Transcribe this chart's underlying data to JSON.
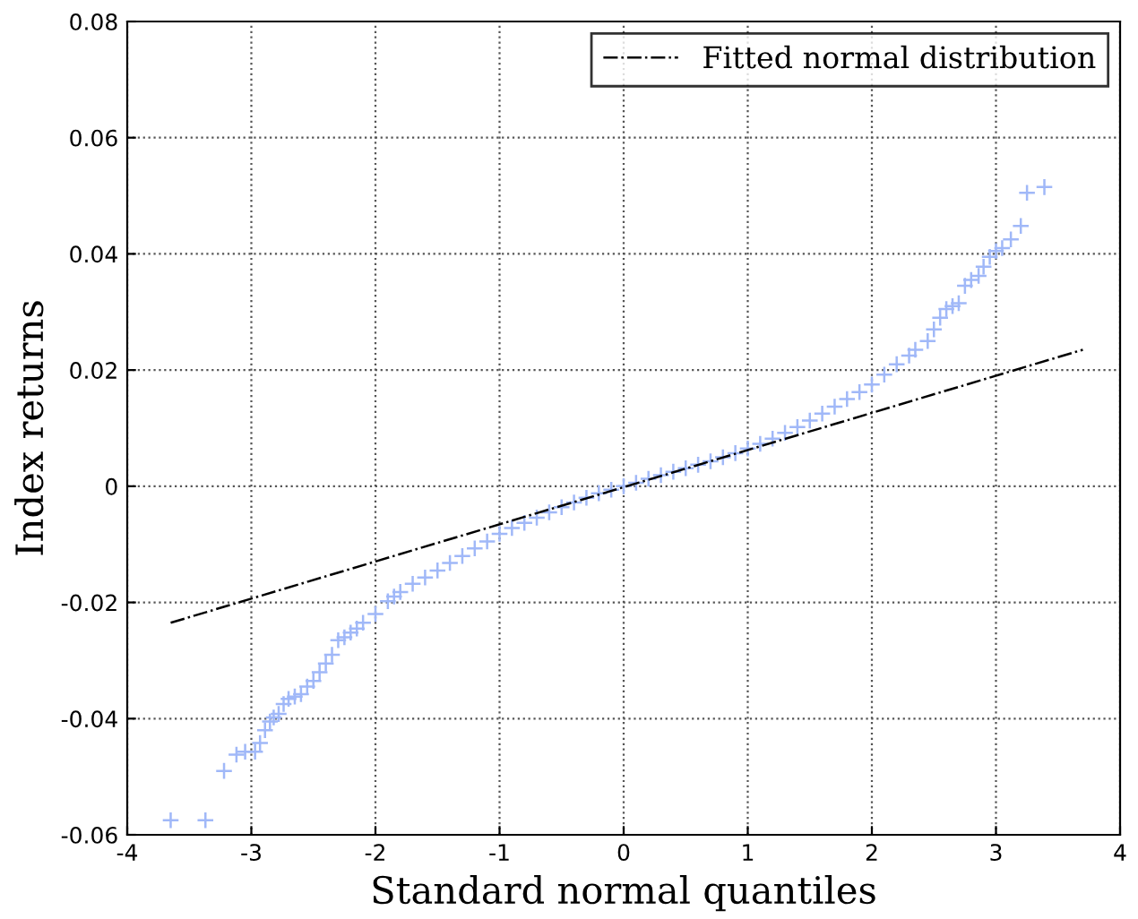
{
  "chart_data": {
    "type": "scatter",
    "xlabel": "Standard normal quantiles",
    "ylabel": "Index returns",
    "xlim": [
      -4,
      4
    ],
    "xticks": [
      -4,
      -3,
      -2,
      -1,
      0,
      1,
      2,
      3,
      4
    ],
    "ylim": [
      -0.06,
      0.08
    ],
    "yticks": [
      -0.06,
      -0.04,
      -0.02,
      0,
      0.02,
      0.04,
      0.06,
      0.08
    ],
    "grid": true,
    "legend": "top right",
    "series": [
      {
        "color": "#a0b8f8",
        "marker": "cross",
        "x": [
          -3.65,
          -3.37,
          -3.22,
          -3.12,
          -3.05,
          -2.97,
          -2.93,
          -2.89,
          -2.85,
          -2.82,
          -2.78,
          -2.74,
          -2.7,
          -2.65,
          -2.6,
          -2.55,
          -2.5,
          -2.45,
          -2.4,
          -2.35,
          -2.3,
          -2.25,
          -2.2,
          -2.15,
          -2.1,
          -2.0,
          -1.9,
          -1.85,
          -1.8,
          -1.7,
          -1.6,
          -1.5,
          -1.4,
          -1.3,
          -1.2,
          -1.1,
          -1.0,
          -0.9,
          -0.8,
          -0.7,
          -0.6,
          -0.5,
          -0.4,
          -0.3,
          -0.2,
          -0.1,
          0,
          0.1,
          0.2,
          0.3,
          0.4,
          0.5,
          0.6,
          0.7,
          0.8,
          0.9,
          1.0,
          1.1,
          1.2,
          1.3,
          1.4,
          1.5,
          1.6,
          1.7,
          1.8,
          1.9,
          2.0,
          2.1,
          2.2,
          2.3,
          2.35,
          2.45,
          2.5,
          2.55,
          2.6,
          2.65,
          2.7,
          2.75,
          2.8,
          2.86,
          2.9,
          2.95,
          3.0,
          3.05,
          3.12,
          3.2,
          3.25,
          3.39
        ],
        "values": [
          -0.0575,
          -0.0575,
          -0.049,
          -0.0462,
          -0.0457,
          -0.0457,
          -0.0442,
          -0.042,
          -0.0405,
          -0.0398,
          -0.0392,
          -0.0375,
          -0.0366,
          -0.0362,
          -0.0358,
          -0.0345,
          -0.0335,
          -0.032,
          -0.0305,
          -0.029,
          -0.0265,
          -0.026,
          -0.0252,
          -0.0245,
          -0.0235,
          -0.022,
          -0.0198,
          -0.019,
          -0.0182,
          -0.0168,
          -0.0157,
          -0.0145,
          -0.0132,
          -0.012,
          -0.0107,
          -0.0095,
          -0.0082,
          -0.0072,
          -0.0063,
          -0.0054,
          -0.0045,
          -0.0036,
          -0.0028,
          -0.002,
          -0.0012,
          -0.0006,
          0,
          0.0006,
          0.0013,
          0.0019,
          0.0025,
          0.0031,
          0.0037,
          0.0043,
          0.005,
          0.0057,
          0.0065,
          0.0073,
          0.0082,
          0.0092,
          0.0102,
          0.0113,
          0.0125,
          0.0137,
          0.015,
          0.0162,
          0.0175,
          0.0192,
          0.021,
          0.0225,
          0.0235,
          0.025,
          0.027,
          0.029,
          0.0305,
          0.031,
          0.0315,
          0.0345,
          0.0355,
          0.0362,
          0.0378,
          0.0395,
          0.0405,
          0.041,
          0.0425,
          0.0448,
          0.0505,
          0.0515
        ]
      },
      {
        "type": "line",
        "name": "Fitted normal distribution",
        "color": "#000000",
        "line_style": "dashdot",
        "x": [
          -3.65,
          3.7
        ],
        "values": [
          -0.0235,
          0.0235
        ]
      }
    ]
  }
}
